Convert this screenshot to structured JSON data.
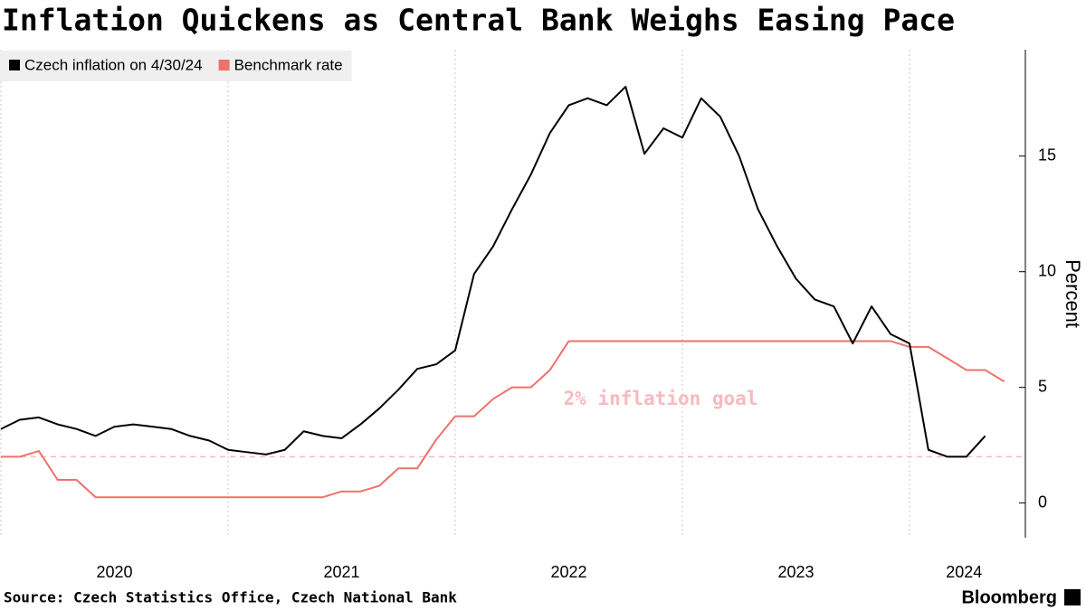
{
  "chart_data": {
    "type": "line",
    "title": "Inflation Quickens as Central Bank Weighs Easing Pace",
    "source": "Source: Czech Statistics Office, Czech National Bank",
    "brand": "Bloomberg",
    "y_label": "Percent",
    "x": [
      2020,
      2020.083,
      2020.167,
      2020.25,
      2020.333,
      2020.417,
      2020.5,
      2020.583,
      2020.667,
      2020.75,
      2020.833,
      2020.917,
      2021,
      2021.083,
      2021.167,
      2021.25,
      2021.333,
      2021.417,
      2021.5,
      2021.583,
      2021.667,
      2021.75,
      2021.833,
      2021.917,
      2022,
      2022.083,
      2022.167,
      2022.25,
      2022.333,
      2022.417,
      2022.5,
      2022.583,
      2022.667,
      2022.75,
      2022.833,
      2022.917,
      2023,
      2023.083,
      2023.167,
      2023.25,
      2023.333,
      2023.417,
      2023.5,
      2023.583,
      2023.667,
      2023.75,
      2023.833,
      2023.917,
      2024,
      2024.083,
      2024.167,
      2024.25,
      2024.333,
      2024.417
    ],
    "series": [
      {
        "name": "Czech inflation on 4/30/24",
        "color": "#000000",
        "values": [
          3.2,
          3.6,
          3.7,
          3.4,
          3.2,
          2.9,
          3.3,
          3.4,
          3.3,
          3.2,
          2.9,
          2.7,
          2.3,
          2.2,
          2.1,
          2.3,
          3.1,
          2.9,
          2.8,
          3.4,
          4.1,
          4.9,
          5.8,
          6.0,
          6.6,
          9.9,
          11.1,
          12.7,
          14.2,
          16.0,
          17.2,
          17.5,
          17.2,
          18.0,
          15.1,
          16.2,
          15.8,
          17.5,
          16.7,
          15.0,
          12.7,
          11.1,
          9.7,
          8.8,
          8.5,
          6.9,
          8.5,
          7.3,
          6.9,
          2.3,
          2.0,
          2.0,
          2.9,
          null
        ]
      },
      {
        "name": "Benchmark rate",
        "color": "#f0706a",
        "values": [
          2.0,
          2.0,
          2.25,
          1.0,
          1.0,
          0.25,
          0.25,
          0.25,
          0.25,
          0.25,
          0.25,
          0.25,
          0.25,
          0.25,
          0.25,
          0.25,
          0.25,
          0.25,
          0.5,
          0.5,
          0.75,
          1.5,
          1.5,
          2.75,
          3.75,
          3.75,
          4.5,
          5.0,
          5.0,
          5.75,
          7.0,
          7.0,
          7.0,
          7.0,
          7.0,
          7.0,
          7.0,
          7.0,
          7.0,
          7.0,
          7.0,
          7.0,
          7.0,
          7.0,
          7.0,
          7.0,
          7.0,
          7.0,
          6.75,
          6.75,
          6.25,
          5.75,
          5.75,
          5.25
        ]
      }
    ],
    "goal": {
      "value": 2,
      "label": "2% inflation goal",
      "color": "#f8b9c0"
    },
    "xlim": [
      2020,
      2024.51
    ],
    "xticks": [
      {
        "value": 2020.5,
        "label": "2020"
      },
      {
        "value": 2021.5,
        "label": "2021"
      },
      {
        "value": 2022.5,
        "label": "2022"
      },
      {
        "value": 2023.5,
        "label": "2023"
      },
      {
        "value": 2024.24,
        "label": "2024"
      }
    ],
    "xgrid": [
      2020,
      2021,
      2022,
      2023,
      2024
    ],
    "ylim": [
      -1.5,
      19.6
    ],
    "yticks": [
      0,
      5,
      10,
      15
    ],
    "legend": "top-left"
  }
}
